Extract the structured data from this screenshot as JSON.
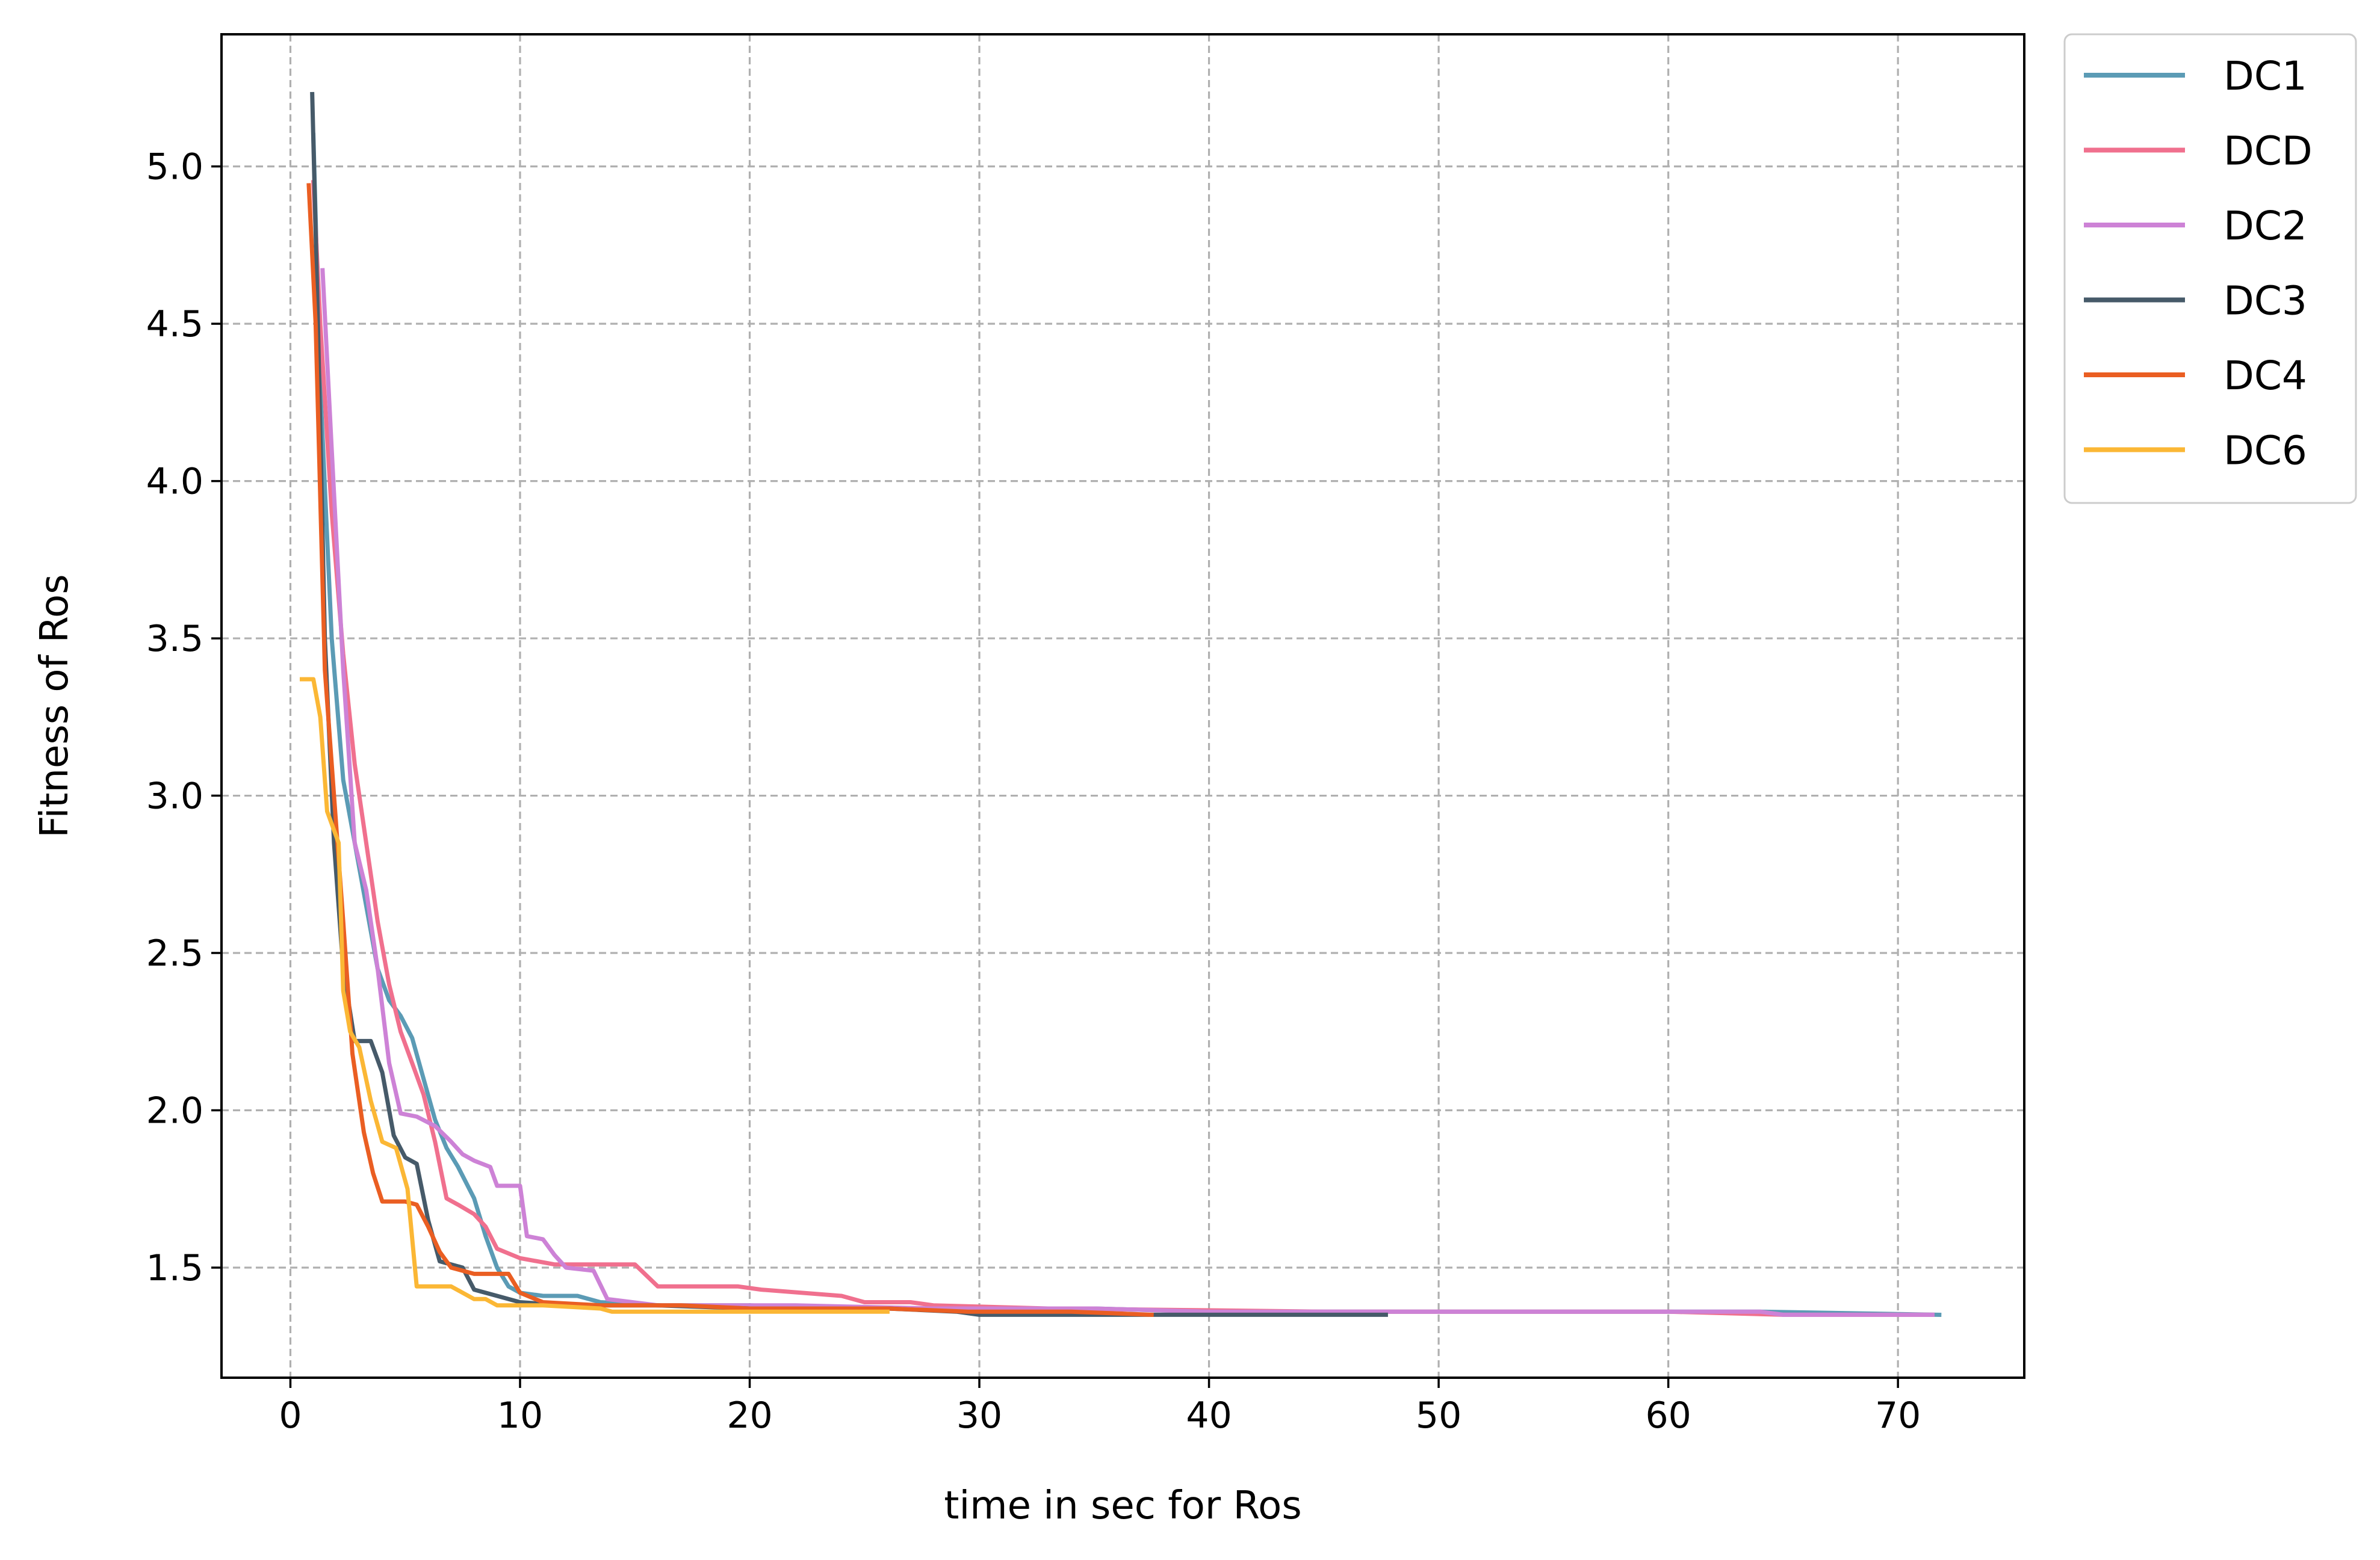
{
  "chart_data": {
    "type": "line",
    "xlabel": "time in sec for Ros",
    "ylabel": "Fitness of Ros",
    "xlim": [
      -3,
      75.5
    ],
    "ylim": [
      1.15,
      5.42
    ],
    "xticks": [
      0,
      10,
      20,
      30,
      40,
      50,
      60,
      70
    ],
    "yticks": [
      1.5,
      2.0,
      2.5,
      3.0,
      3.5,
      4.0,
      4.5,
      5.0
    ],
    "xtick_labels": [
      "0",
      "10",
      "20",
      "30",
      "40",
      "50",
      "60",
      "70"
    ],
    "ytick_labels": [
      "1.5",
      "2.0",
      "2.5",
      "3.0",
      "3.5",
      "4.0",
      "4.5",
      "5.0"
    ],
    "grid": true,
    "legend_position": "outside upper right",
    "series": [
      {
        "name": "DC1",
        "color": "#5b9bb5",
        "points": [
          [
            1.0,
            5.1
          ],
          [
            1.3,
            4.3
          ],
          [
            1.8,
            3.5
          ],
          [
            2.3,
            3.05
          ],
          [
            2.8,
            2.85
          ],
          [
            3.3,
            2.65
          ],
          [
            3.8,
            2.45
          ],
          [
            4.3,
            2.35
          ],
          [
            4.8,
            2.3
          ],
          [
            5.3,
            2.23
          ],
          [
            5.8,
            2.1
          ],
          [
            6.3,
            1.97
          ],
          [
            6.8,
            1.88
          ],
          [
            7.3,
            1.82
          ],
          [
            8.0,
            1.72
          ],
          [
            8.5,
            1.6
          ],
          [
            9.0,
            1.5
          ],
          [
            9.5,
            1.44
          ],
          [
            10.0,
            1.42
          ],
          [
            11.0,
            1.41
          ],
          [
            12.5,
            1.41
          ],
          [
            13.5,
            1.39
          ],
          [
            16.0,
            1.38
          ],
          [
            20.0,
            1.38
          ],
          [
            24.0,
            1.37
          ],
          [
            30.0,
            1.37
          ],
          [
            35.0,
            1.37
          ],
          [
            40.0,
            1.36
          ],
          [
            46.0,
            1.36
          ],
          [
            55.0,
            1.36
          ],
          [
            64.0,
            1.36
          ],
          [
            71.8,
            1.35
          ]
        ]
      },
      {
        "name": "DCD",
        "color": "#f0708e",
        "points": [
          [
            1.0,
            4.95
          ],
          [
            1.3,
            4.5
          ],
          [
            1.8,
            3.9
          ],
          [
            2.3,
            3.45
          ],
          [
            2.8,
            3.1
          ],
          [
            3.3,
            2.85
          ],
          [
            3.8,
            2.6
          ],
          [
            4.3,
            2.4
          ],
          [
            4.8,
            2.25
          ],
          [
            5.3,
            2.15
          ],
          [
            5.8,
            2.05
          ],
          [
            6.3,
            1.9
          ],
          [
            6.8,
            1.72
          ],
          [
            7.3,
            1.7
          ],
          [
            8.0,
            1.67
          ],
          [
            8.5,
            1.63
          ],
          [
            9.0,
            1.56
          ],
          [
            10.0,
            1.53
          ],
          [
            11.5,
            1.51
          ],
          [
            15.0,
            1.51
          ],
          [
            16.0,
            1.44
          ],
          [
            19.5,
            1.44
          ],
          [
            20.5,
            1.43
          ],
          [
            24.0,
            1.41
          ],
          [
            25.0,
            1.39
          ],
          [
            27.0,
            1.39
          ],
          [
            28.0,
            1.38
          ],
          [
            33.0,
            1.37
          ],
          [
            45.0,
            1.36
          ],
          [
            60.0,
            1.36
          ],
          [
            65.0,
            1.35
          ],
          [
            71.5,
            1.35
          ]
        ]
      },
      {
        "name": "DC2",
        "color": "#cd82d6",
        "points": [
          [
            1.4,
            4.67
          ],
          [
            1.8,
            4.1
          ],
          [
            2.3,
            3.4
          ],
          [
            2.8,
            2.85
          ],
          [
            3.3,
            2.7
          ],
          [
            3.8,
            2.45
          ],
          [
            4.3,
            2.15
          ],
          [
            4.8,
            1.99
          ],
          [
            5.5,
            1.98
          ],
          [
            6.3,
            1.95
          ],
          [
            7.0,
            1.9
          ],
          [
            7.5,
            1.86
          ],
          [
            8.0,
            1.84
          ],
          [
            8.7,
            1.82
          ],
          [
            9.0,
            1.76
          ],
          [
            10.0,
            1.76
          ],
          [
            10.3,
            1.6
          ],
          [
            11.0,
            1.59
          ],
          [
            11.5,
            1.54
          ],
          [
            12.0,
            1.5
          ],
          [
            13.2,
            1.49
          ],
          [
            13.8,
            1.4
          ],
          [
            16.0,
            1.38
          ],
          [
            22.0,
            1.38
          ],
          [
            28.0,
            1.37
          ],
          [
            35.0,
            1.37
          ],
          [
            40.0,
            1.36
          ],
          [
            50.0,
            1.36
          ],
          [
            64.0,
            1.36
          ],
          [
            65.0,
            1.35
          ],
          [
            71.5,
            1.35
          ]
        ]
      },
      {
        "name": "DC3",
        "color": "#465a69",
        "points": [
          [
            0.95,
            5.23
          ],
          [
            1.2,
            4.5
          ],
          [
            1.5,
            3.5
          ],
          [
            1.9,
            2.85
          ],
          [
            2.3,
            2.45
          ],
          [
            2.8,
            2.22
          ],
          [
            3.5,
            2.22
          ],
          [
            4.0,
            2.12
          ],
          [
            4.5,
            1.92
          ],
          [
            5.0,
            1.85
          ],
          [
            5.5,
            1.83
          ],
          [
            6.0,
            1.65
          ],
          [
            6.5,
            1.52
          ],
          [
            7.0,
            1.51
          ],
          [
            7.5,
            1.5
          ],
          [
            8.0,
            1.43
          ],
          [
            9.0,
            1.41
          ],
          [
            10.0,
            1.39
          ],
          [
            12.0,
            1.38
          ],
          [
            16.0,
            1.38
          ],
          [
            20.0,
            1.37
          ],
          [
            26.0,
            1.37
          ],
          [
            29.0,
            1.36
          ],
          [
            30.0,
            1.35
          ],
          [
            40.0,
            1.35
          ],
          [
            47.7,
            1.35
          ]
        ]
      },
      {
        "name": "DC4",
        "color": "#ea5e22",
        "points": [
          [
            0.8,
            4.94
          ],
          [
            1.1,
            4.5
          ],
          [
            1.5,
            3.4
          ],
          [
            1.9,
            3.0
          ],
          [
            2.3,
            2.6
          ],
          [
            2.7,
            2.18
          ],
          [
            3.2,
            1.93
          ],
          [
            3.6,
            1.8
          ],
          [
            4.0,
            1.71
          ],
          [
            5.0,
            1.71
          ],
          [
            5.5,
            1.7
          ],
          [
            6.0,
            1.63
          ],
          [
            6.5,
            1.55
          ],
          [
            7.0,
            1.5
          ],
          [
            8.0,
            1.48
          ],
          [
            9.5,
            1.48
          ],
          [
            10.0,
            1.42
          ],
          [
            11.0,
            1.39
          ],
          [
            13.5,
            1.38
          ],
          [
            17.0,
            1.38
          ],
          [
            20.0,
            1.37
          ],
          [
            26.0,
            1.37
          ],
          [
            29.5,
            1.36
          ],
          [
            34.0,
            1.36
          ],
          [
            37.5,
            1.35
          ]
        ]
      },
      {
        "name": "DC6",
        "color": "#fbb735",
        "points": [
          [
            0.5,
            3.37
          ],
          [
            1.0,
            3.37
          ],
          [
            1.3,
            3.25
          ],
          [
            1.6,
            2.95
          ],
          [
            2.1,
            2.85
          ],
          [
            2.3,
            2.38
          ],
          [
            2.6,
            2.25
          ],
          [
            3.0,
            2.2
          ],
          [
            3.5,
            2.03
          ],
          [
            4.0,
            1.9
          ],
          [
            4.6,
            1.88
          ],
          [
            5.1,
            1.75
          ],
          [
            5.5,
            1.44
          ],
          [
            7.0,
            1.44
          ],
          [
            7.5,
            1.42
          ],
          [
            8.0,
            1.4
          ],
          [
            8.5,
            1.4
          ],
          [
            9.0,
            1.38
          ],
          [
            11.0,
            1.38
          ],
          [
            13.5,
            1.37
          ],
          [
            14.0,
            1.36
          ],
          [
            20.0,
            1.36
          ],
          [
            26.0,
            1.36
          ]
        ]
      }
    ]
  }
}
